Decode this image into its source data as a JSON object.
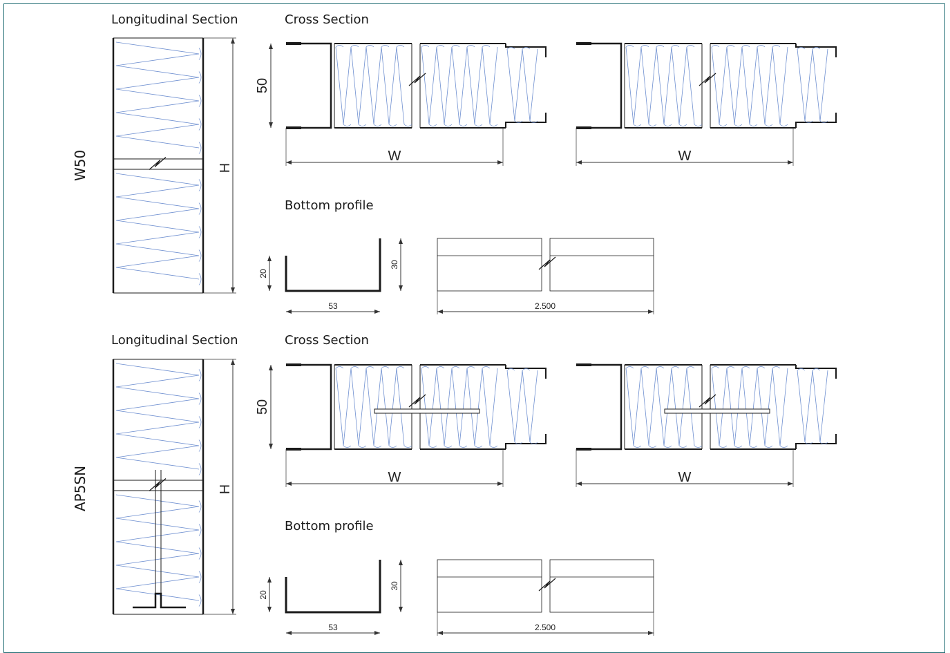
{
  "sections": [
    {
      "type_label": "W50",
      "longitudinal_title": "Longitudinal Section",
      "cross_title": "Cross Section",
      "bottom_title": "Bottom profile",
      "dim_height": "H",
      "dim_thickness": "50",
      "dim_width": "W",
      "profile_height_short": "20",
      "profile_height_long": "30",
      "profile_width": "53",
      "profile_length": "2.500"
    },
    {
      "type_label": "AP5SN",
      "longitudinal_title": "Longitudinal Section",
      "cross_title": "Cross Section",
      "bottom_title": "Bottom profile",
      "dim_height": "H",
      "dim_thickness": "50",
      "dim_width": "W",
      "profile_height_short": "20",
      "profile_height_long": "30",
      "profile_width": "53",
      "profile_length": "2.500"
    }
  ],
  "colors": {
    "frame": "#1e6b72",
    "line": "#1a1a1a",
    "insulation": "#6e8fd0",
    "dimension": "#333333"
  }
}
